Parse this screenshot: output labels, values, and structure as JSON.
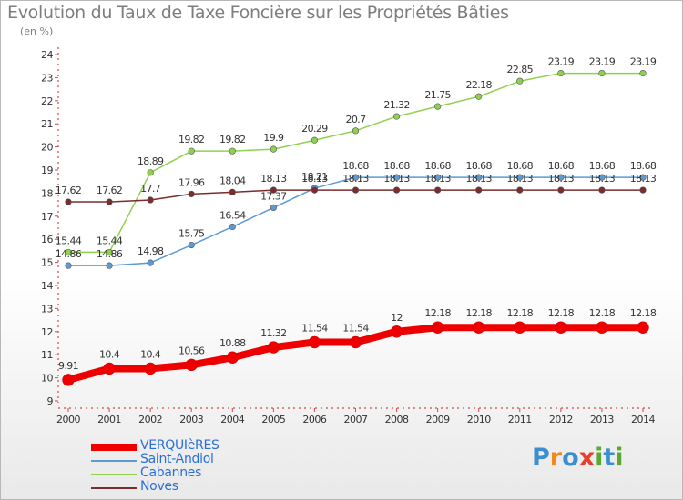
{
  "title": "Evolution du Taux de Taxe Foncière sur les Propriétés Bâties",
  "unit_label": "(en %)",
  "logo": {
    "text": "Proxiti",
    "letters": [
      "P",
      "r",
      "o",
      "x",
      "i",
      "t",
      "i"
    ],
    "colors": [
      "#3b8fd0",
      "#f08a1c",
      "#3b8fd0",
      "#e8402a",
      "#5aa832",
      "#3b8fd0",
      "#5aa832"
    ]
  },
  "chart_data": {
    "type": "line",
    "title": "Evolution du Taux de Taxe Foncière sur les Propriétés Bâties",
    "ylabel": "(en %)",
    "xlabel": "",
    "x": [
      "2000",
      "2001",
      "2002",
      "2003",
      "2004",
      "2005",
      "2006",
      "2007",
      "2008",
      "2009",
      "2010",
      "2011",
      "2012",
      "2013",
      "2014"
    ],
    "ylim": [
      9,
      24
    ],
    "yticks": [
      "9",
      "10",
      "11",
      "12",
      "13",
      "14",
      "15",
      "16",
      "17",
      "18",
      "19",
      "20",
      "21",
      "22",
      "23",
      "24"
    ],
    "grid": false,
    "legend_position": "bottom-left",
    "series": [
      {
        "name": "VERQUIèRES",
        "color": "#ee0000",
        "values": [
          9.91,
          10.4,
          10.4,
          10.56,
          10.88,
          11.32,
          11.54,
          11.54,
          12,
          12.18,
          12.18,
          12.18,
          12.18,
          12.18,
          12.18
        ],
        "labels": [
          "9.91",
          "10.4",
          "10.4",
          "10.56",
          "10.88",
          "11.32",
          "11.54",
          "11.54",
          "12",
          "12.18",
          "12.18",
          "12.18",
          "12.18",
          "12.18",
          "12.18"
        ]
      },
      {
        "name": "Saint-Andiol",
        "color": "#5b9bd5",
        "values": [
          14.86,
          14.86,
          14.98,
          15.75,
          16.54,
          17.37,
          18.21,
          18.68,
          18.68,
          18.68,
          18.68,
          18.68,
          18.68,
          18.68,
          18.68
        ],
        "labels": [
          "14.86",
          "14.86",
          "14.98",
          "15.75",
          "16.54",
          "17.37",
          "18.21",
          "18.68",
          "18.68",
          "18.68",
          "18.68",
          "18.68",
          "18.68",
          "18.68",
          "18.68"
        ]
      },
      {
        "name": "Cabannes",
        "color": "#8fd14f",
        "values": [
          15.44,
          15.44,
          18.89,
          19.82,
          19.82,
          19.9,
          20.29,
          20.7,
          21.32,
          21.75,
          22.18,
          22.85,
          23.19,
          23.19,
          23.19
        ],
        "labels": [
          "15.44",
          "15.44",
          "18.89",
          "19.82",
          "19.82",
          "19.9",
          "20.29",
          "20.7",
          "21.32",
          "21.75",
          "22.18",
          "22.85",
          "23.19",
          "23.19",
          "23.19"
        ]
      },
      {
        "name": "Noves",
        "color": "#7b2c2c",
        "values": [
          17.62,
          17.62,
          17.7,
          17.96,
          18.04,
          18.13,
          18.13,
          18.13,
          18.13,
          18.13,
          18.13,
          18.13,
          18.13,
          18.13,
          18.13
        ],
        "labels": [
          "17.62",
          "17.62",
          "17.7",
          "17.96",
          "18.04",
          "18.13",
          "18.13",
          "18.13",
          "18.13",
          "18.13",
          "18.13",
          "18.13",
          "18.13",
          "18.13",
          "18.13"
        ]
      }
    ]
  }
}
